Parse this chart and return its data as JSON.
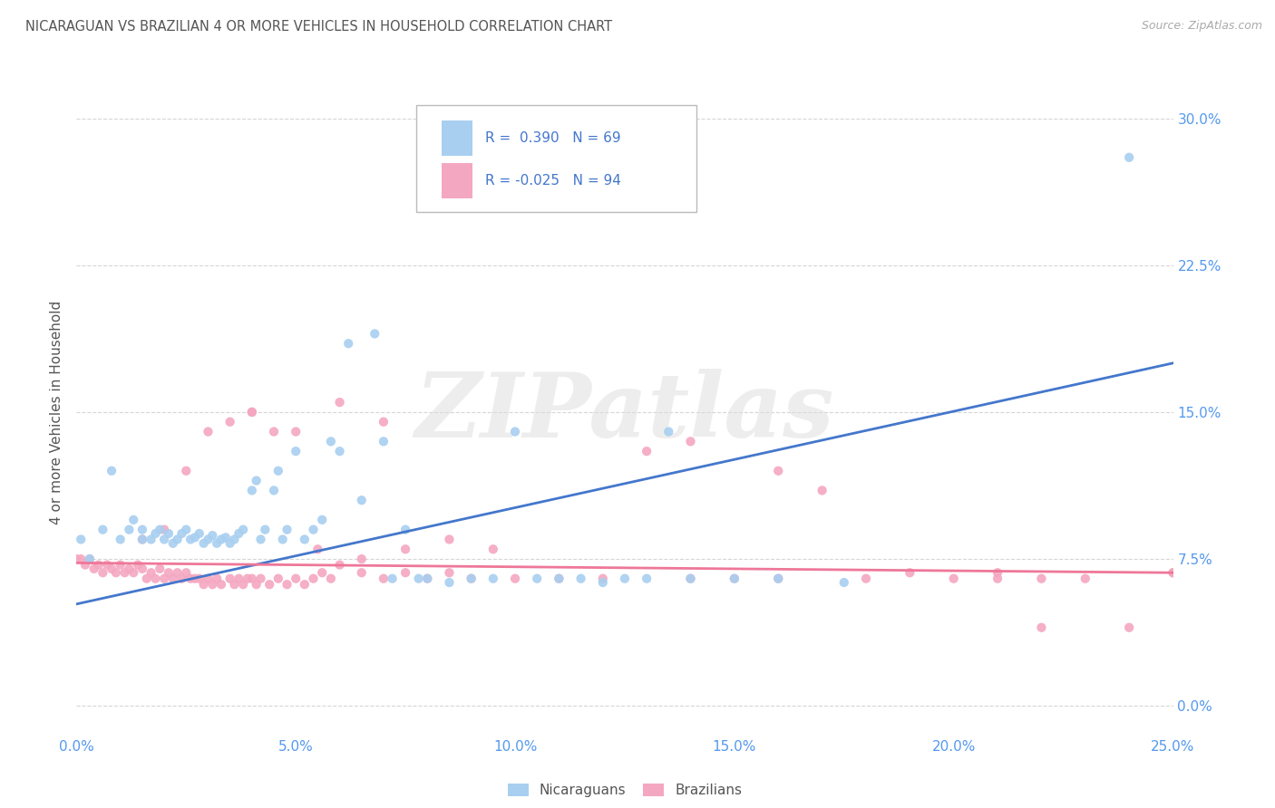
{
  "title": "NICARAGUAN VS BRAZILIAN 4 OR MORE VEHICLES IN HOUSEHOLD CORRELATION CHART",
  "source": "Source: ZipAtlas.com",
  "ylabel_label": "4 or more Vehicles in Household",
  "xlim": [
    0.0,
    0.25
  ],
  "ylim": [
    -0.015,
    0.315
  ],
  "blue_color": "#a8cff0",
  "pink_color": "#f4a7c0",
  "blue_line_color": "#4477cc",
  "pink_line_color": "#ee7799",
  "background_color": "#ffffff",
  "title_color": "#555555",
  "source_color": "#aaaaaa",
  "axis_tick_color": "#5599ee",
  "grid_color": "#cccccc",
  "watermark_text": "ZIPatlas",
  "legend_r1": "R =  0.390",
  "legend_n1": "N = 69",
  "legend_r2": "R = -0.025",
  "legend_n2": "N = 94",
  "nic_line_x0": 0.0,
  "nic_line_y0": 0.052,
  "nic_line_x1": 0.25,
  "nic_line_y1": 0.175,
  "bra_line_x0": 0.0,
  "bra_line_y0": 0.073,
  "bra_line_x1": 0.25,
  "bra_line_y1": 0.068,
  "nicaraguan_x": [
    0.001,
    0.003,
    0.006,
    0.008,
    0.01,
    0.012,
    0.013,
    0.015,
    0.015,
    0.017,
    0.018,
    0.019,
    0.02,
    0.021,
    0.022,
    0.023,
    0.024,
    0.025,
    0.026,
    0.027,
    0.028,
    0.029,
    0.03,
    0.031,
    0.032,
    0.033,
    0.034,
    0.035,
    0.036,
    0.037,
    0.038,
    0.04,
    0.041,
    0.042,
    0.043,
    0.045,
    0.046,
    0.047,
    0.048,
    0.05,
    0.052,
    0.054,
    0.056,
    0.058,
    0.06,
    0.062,
    0.065,
    0.068,
    0.07,
    0.072,
    0.075,
    0.078,
    0.08,
    0.085,
    0.09,
    0.095,
    0.1,
    0.105,
    0.11,
    0.115,
    0.12,
    0.125,
    0.13,
    0.135,
    0.14,
    0.15,
    0.16,
    0.175,
    0.24
  ],
  "nicaraguan_y": [
    0.085,
    0.075,
    0.09,
    0.12,
    0.085,
    0.09,
    0.095,
    0.085,
    0.09,
    0.085,
    0.088,
    0.09,
    0.085,
    0.088,
    0.083,
    0.085,
    0.088,
    0.09,
    0.085,
    0.086,
    0.088,
    0.083,
    0.085,
    0.087,
    0.083,
    0.085,
    0.086,
    0.083,
    0.085,
    0.088,
    0.09,
    0.11,
    0.115,
    0.085,
    0.09,
    0.11,
    0.12,
    0.085,
    0.09,
    0.13,
    0.085,
    0.09,
    0.095,
    0.135,
    0.13,
    0.185,
    0.105,
    0.19,
    0.135,
    0.065,
    0.09,
    0.065,
    0.065,
    0.063,
    0.065,
    0.065,
    0.14,
    0.065,
    0.065,
    0.065,
    0.063,
    0.065,
    0.065,
    0.14,
    0.065,
    0.065,
    0.065,
    0.063,
    0.28
  ],
  "brazilian_x": [
    0.0,
    0.001,
    0.002,
    0.003,
    0.004,
    0.005,
    0.006,
    0.007,
    0.008,
    0.009,
    0.01,
    0.011,
    0.012,
    0.013,
    0.014,
    0.015,
    0.016,
    0.017,
    0.018,
    0.019,
    0.02,
    0.021,
    0.022,
    0.023,
    0.024,
    0.025,
    0.026,
    0.027,
    0.028,
    0.029,
    0.03,
    0.031,
    0.032,
    0.033,
    0.035,
    0.036,
    0.037,
    0.038,
    0.039,
    0.04,
    0.041,
    0.042,
    0.044,
    0.046,
    0.048,
    0.05,
    0.052,
    0.054,
    0.056,
    0.058,
    0.06,
    0.065,
    0.07,
    0.075,
    0.08,
    0.085,
    0.09,
    0.1,
    0.11,
    0.12,
    0.14,
    0.15,
    0.16,
    0.18,
    0.19,
    0.2,
    0.21,
    0.22,
    0.23,
    0.24,
    0.25,
    0.13,
    0.17,
    0.21,
    0.14,
    0.16,
    0.04,
    0.03,
    0.025,
    0.035,
    0.045,
    0.055,
    0.065,
    0.075,
    0.085,
    0.095,
    0.015,
    0.02,
    0.04,
    0.05,
    0.06,
    0.07,
    0.25,
    0.22
  ],
  "brazilian_y": [
    0.075,
    0.075,
    0.072,
    0.075,
    0.07,
    0.072,
    0.068,
    0.072,
    0.07,
    0.068,
    0.072,
    0.068,
    0.07,
    0.068,
    0.072,
    0.07,
    0.065,
    0.068,
    0.065,
    0.07,
    0.065,
    0.068,
    0.065,
    0.068,
    0.065,
    0.068,
    0.065,
    0.065,
    0.065,
    0.062,
    0.065,
    0.062,
    0.065,
    0.062,
    0.065,
    0.062,
    0.065,
    0.062,
    0.065,
    0.065,
    0.062,
    0.065,
    0.062,
    0.065,
    0.062,
    0.065,
    0.062,
    0.065,
    0.068,
    0.065,
    0.072,
    0.068,
    0.065,
    0.068,
    0.065,
    0.068,
    0.065,
    0.065,
    0.065,
    0.065,
    0.065,
    0.065,
    0.065,
    0.065,
    0.068,
    0.065,
    0.065,
    0.065,
    0.065,
    0.04,
    0.068,
    0.13,
    0.11,
    0.068,
    0.135,
    0.12,
    0.15,
    0.14,
    0.12,
    0.145,
    0.14,
    0.08,
    0.075,
    0.08,
    0.085,
    0.08,
    0.085,
    0.09,
    0.15,
    0.14,
    0.155,
    0.145,
    0.068,
    0.04
  ]
}
